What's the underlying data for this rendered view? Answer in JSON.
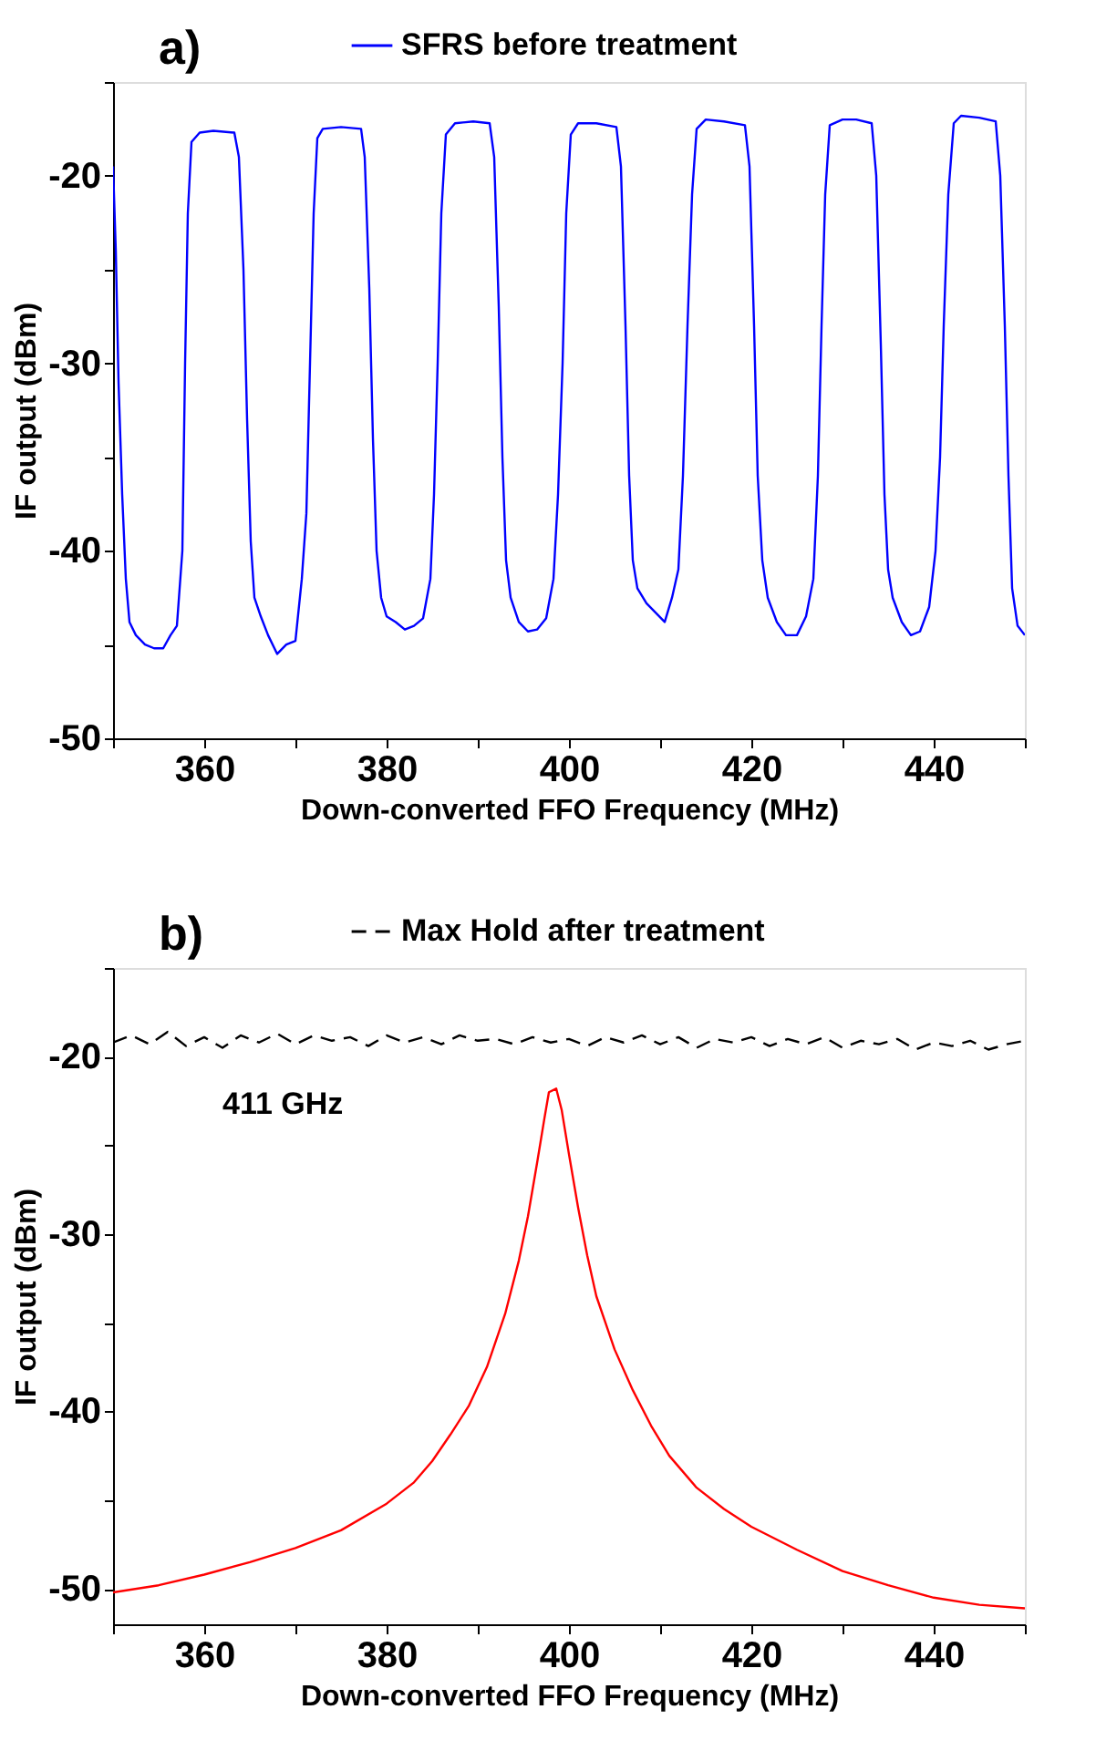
{
  "chart_data": [
    {
      "type": "line",
      "xlabel": "Down-converted FFO Frequency (MHz)",
      "ylabel": "IF output (dBm)",
      "annotations": [
        "a)"
      ],
      "xlim": [
        350,
        450
      ],
      "xticks": [
        {
          "value": 350,
          "label": null
        },
        360,
        {
          "value": 370,
          "label": null
        },
        380,
        {
          "value": 390,
          "label": null
        },
        400,
        {
          "value": 410,
          "label": null
        },
        420,
        {
          "value": 430,
          "label": null
        },
        440,
        {
          "value": 450,
          "label": null
        }
      ],
      "ylim": [
        -50,
        -15
      ],
      "yticks": [
        -50,
        {
          "value": -45,
          "label": null
        },
        -40,
        {
          "value": -35,
          "label": null
        },
        -30,
        {
          "value": -25,
          "label": null
        },
        -20,
        {
          "value": -15,
          "label": null
        }
      ],
      "grid": false,
      "legend": "top",
      "x": [
        350,
        350.3,
        350.6,
        351,
        351.4,
        351.8,
        352.5,
        353.5,
        354.5,
        355.5,
        356.3,
        357.0,
        357.6,
        357.9,
        358.2,
        358.6,
        359.5,
        361,
        363.3,
        363.8,
        364.3,
        364.7,
        365.1,
        365.5,
        366.2,
        367,
        368,
        369,
        370,
        370.7,
        371.2,
        371.6,
        372,
        372.4,
        373,
        375,
        377.2,
        377.6,
        378.1,
        378.5,
        378.9,
        379.4,
        380,
        381,
        382,
        383,
        384,
        384.8,
        385.2,
        385.6,
        386,
        386.5,
        387.5,
        389.5,
        391.3,
        391.8,
        392.3,
        392.7,
        393.1,
        393.6,
        394.5,
        395.5,
        396.5,
        397.5,
        398.3,
        398.8,
        399.3,
        399.7,
        400.2,
        401,
        403,
        405.2,
        405.7,
        406.2,
        406.6,
        407,
        407.5,
        408.5,
        409.5,
        410.5,
        411.3,
        412,
        412.5,
        413,
        413.5,
        414,
        415,
        417,
        419.3,
        419.8,
        420.3,
        420.7,
        421.2,
        421.8,
        422.8,
        423.8,
        425,
        426,
        426.8,
        427.3,
        427.7,
        428.1,
        428.6,
        430,
        431.5,
        433.2,
        433.7,
        434.2,
        434.6,
        435,
        435.5,
        436.5,
        437.5,
        438.5,
        439.5,
        440.2,
        440.7,
        441.1,
        441.6,
        442.2,
        443,
        445,
        446.8,
        447.3,
        447.8,
        448.2,
        448.6,
        449.2,
        450
      ],
      "series": [
        {
          "name": "SFRS before treatment",
          "color": "#0000ff",
          "line_style": "solid",
          "values": [
            -19.5,
            -24,
            -31,
            -37,
            -41.5,
            -43.8,
            -44.5,
            -45,
            -45.2,
            -45.2,
            -44.5,
            -44.0,
            -40,
            -30,
            -22,
            -18.2,
            -17.7,
            -17.6,
            -17.7,
            -19,
            -25,
            -33,
            -39.5,
            -42.5,
            -43.5,
            -44.5,
            -45.5,
            -45,
            -44.8,
            -41.5,
            -38,
            -30,
            -22,
            -18,
            -17.5,
            -17.4,
            -17.5,
            -19,
            -26,
            -34,
            -40,
            -42.5,
            -43.5,
            -43.8,
            -44.2,
            -44,
            -43.6,
            -41.5,
            -37,
            -30,
            -22,
            -17.8,
            -17.2,
            -17.1,
            -17.2,
            -19,
            -27,
            -35,
            -40.5,
            -42.5,
            -43.8,
            -44.3,
            -44.2,
            -43.6,
            -41.5,
            -37,
            -30,
            -22,
            -17.8,
            -17.2,
            -17.2,
            -17.4,
            -19.5,
            -28,
            -36,
            -40.5,
            -42,
            -42.8,
            -43.3,
            -43.8,
            -42.5,
            -41,
            -36,
            -28,
            -21,
            -17.5,
            -17,
            -17.1,
            -17.3,
            -19.5,
            -28,
            -36,
            -40.5,
            -42.5,
            -43.8,
            -44.5,
            -44.5,
            -43.5,
            -41.5,
            -36,
            -28,
            -21,
            -17.3,
            -17,
            -17,
            -17.2,
            -20,
            -29,
            -37,
            -41,
            -42.5,
            -43.8,
            -44.5,
            -44.3,
            -43,
            -40,
            -35,
            -28,
            -21,
            -17.2,
            -16.8,
            -16.9,
            -17.1,
            -20,
            -28,
            -36,
            -42,
            -44,
            -44.5
          ]
        }
      ]
    },
    {
      "type": "line",
      "xlabel": "Down-converted FFO Frequency (MHz)",
      "ylabel": "IF output (dBm)",
      "annotations": [
        "b)",
        "411 GHz"
      ],
      "xlim": [
        350,
        450
      ],
      "xticks": [
        {
          "value": 350,
          "label": null
        },
        360,
        {
          "value": 370,
          "label": null
        },
        380,
        {
          "value": 390,
          "label": null
        },
        400,
        {
          "value": 410,
          "label": null
        },
        420,
        {
          "value": 430,
          "label": null
        },
        440,
        {
          "value": 450,
          "label": null
        }
      ],
      "ylim": [
        -52,
        -15
      ],
      "yticks": [
        -50,
        {
          "value": -45,
          "label": null
        },
        -40,
        {
          "value": -35,
          "label": null
        },
        -30,
        {
          "value": -25,
          "label": null
        },
        -20,
        {
          "value": -15,
          "label": null
        }
      ],
      "grid": false,
      "legend": "top",
      "series": [
        {
          "name": "Max Hold after treatment",
          "color": "#000000",
          "line_style": "dashed",
          "x": [
            350,
            352,
            354,
            356,
            358,
            360,
            362,
            364,
            366,
            368,
            370,
            372,
            374,
            376,
            378,
            380,
            382,
            384,
            386,
            388,
            390,
            392,
            394,
            396,
            398,
            400,
            402,
            404,
            406,
            408,
            410,
            412,
            414,
            416,
            418,
            420,
            422,
            424,
            426,
            428,
            430,
            432,
            434,
            436,
            438,
            440,
            442,
            444,
            446,
            448,
            450
          ],
          "values": [
            -19.2,
            -18.8,
            -19.3,
            -18.6,
            -19.4,
            -18.9,
            -19.5,
            -18.8,
            -19.2,
            -18.7,
            -19.3,
            -18.8,
            -19.1,
            -18.9,
            -19.4,
            -18.8,
            -19.2,
            -18.9,
            -19.3,
            -18.8,
            -19.1,
            -19.0,
            -19.3,
            -18.9,
            -19.2,
            -19.0,
            -19.4,
            -18.9,
            -19.2,
            -18.8,
            -19.3,
            -18.9,
            -19.5,
            -19.0,
            -19.2,
            -18.9,
            -19.4,
            -19.0,
            -19.3,
            -18.9,
            -19.5,
            -19.1,
            -19.3,
            -19.0,
            -19.6,
            -19.2,
            -19.4,
            -19.1,
            -19.6,
            -19.3,
            -19.1
          ]
        },
        {
          "color": "#ff0000",
          "line_style": "solid",
          "x": [
            350,
            355,
            360,
            365,
            370,
            375,
            380,
            383,
            385,
            387,
            389,
            391,
            393,
            394.5,
            395.5,
            396.5,
            397.3,
            397.8,
            398.6,
            399.2,
            400,
            401,
            402,
            403,
            404,
            405,
            407,
            409,
            411,
            414,
            417,
            420,
            425,
            430,
            435,
            440,
            445,
            450
          ],
          "values": [
            -50.2,
            -49.8,
            -49.2,
            -48.5,
            -47.7,
            -46.7,
            -45.2,
            -44,
            -42.8,
            -41.3,
            -39.7,
            -37.5,
            -34.5,
            -31.5,
            -29,
            -26,
            -23.5,
            -22,
            -21.8,
            -23,
            -25.5,
            -28.5,
            -31.2,
            -33.5,
            -35,
            -36.5,
            -38.8,
            -40.8,
            -42.5,
            -44.3,
            -45.5,
            -46.5,
            -47.8,
            -49,
            -49.8,
            -50.5,
            -50.9,
            -51.1
          ]
        }
      ]
    }
  ]
}
